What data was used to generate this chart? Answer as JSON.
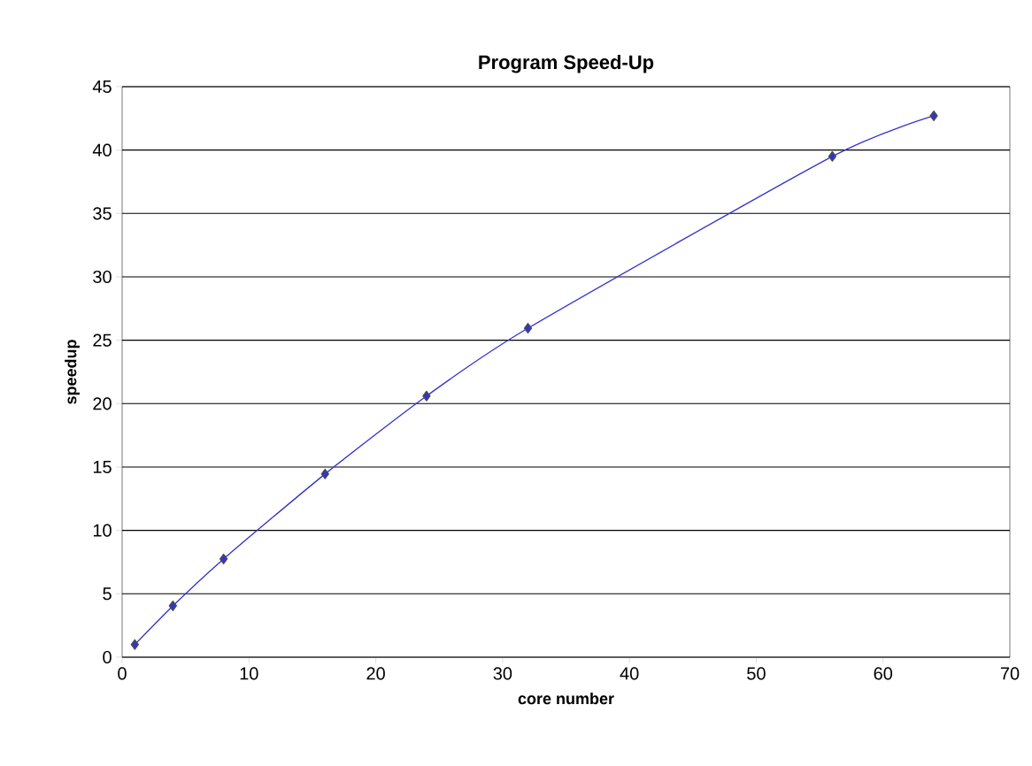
{
  "chart_data": {
    "type": "line",
    "title": "Program Speed-Up",
    "xlabel": "core number",
    "ylabel": "speedup",
    "x": [
      1,
      4,
      8,
      16,
      24,
      32,
      56,
      64
    ],
    "series": [
      {
        "color": "#3333cc",
        "values": [
          1,
          4.05,
          7.75,
          14.45,
          20.6,
          25.95,
          39.5,
          42.7
        ]
      }
    ],
    "xlim": [
      0,
      70
    ],
    "xticks": [
      0,
      10,
      20,
      30,
      40,
      50,
      60,
      70
    ],
    "ylim": [
      0,
      45
    ],
    "yticks": [
      0,
      5,
      10,
      15,
      20,
      25,
      30,
      35,
      40,
      45
    ],
    "grid": "y",
    "marker": "diamond",
    "line_style": "solid"
  }
}
